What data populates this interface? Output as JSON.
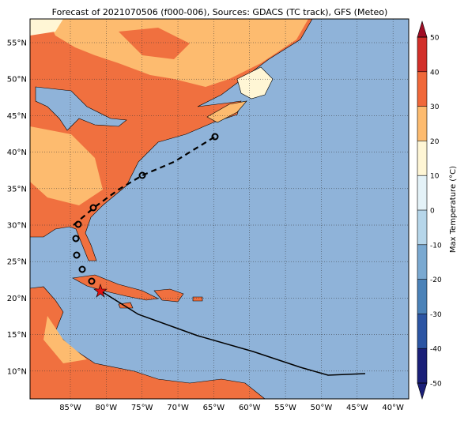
{
  "title": "Forecast of 2021070506 (f000-006), Sources: GDACS (TC track), GFS (Meteo)",
  "lat_ticks": [
    {
      "value": 55,
      "label": "55°N"
    },
    {
      "value": 50,
      "label": "50°N"
    },
    {
      "value": 45,
      "label": "45°N"
    },
    {
      "value": 40,
      "label": "40°N"
    },
    {
      "value": 35,
      "label": "35°N"
    },
    {
      "value": 30,
      "label": "30°N"
    },
    {
      "value": 25,
      "label": "25°N"
    },
    {
      "value": 20,
      "label": "20°N"
    },
    {
      "value": 15,
      "label": "15°N"
    },
    {
      "value": 10,
      "label": "10°N"
    }
  ],
  "lon_ticks": [
    {
      "value": -85,
      "label": "85°W"
    },
    {
      "value": -80,
      "label": "80°W"
    },
    {
      "value": -75,
      "label": "75°W"
    },
    {
      "value": -70,
      "label": "70°W"
    },
    {
      "value": -65,
      "label": "65°W"
    },
    {
      "value": -60,
      "label": "60°W"
    },
    {
      "value": -55,
      "label": "55°W"
    },
    {
      "value": -50,
      "label": "50°W"
    },
    {
      "value": -45,
      "label": "45°W"
    },
    {
      "value": -40,
      "label": "40°W"
    }
  ],
  "colorbar": {
    "label": "Max Temperature (°C)",
    "ticks": [
      -50,
      -40,
      -30,
      -20,
      -10,
      0,
      10,
      20,
      30,
      40,
      50
    ],
    "colors": [
      "#1a1f78",
      "#2c55a3",
      "#4b82b8",
      "#7aa9d1",
      "#b6d6ea",
      "#e4f2f8",
      "#fff6d5",
      "#fdbb6f",
      "#f0683a",
      "#d2302a",
      "#a00d25"
    ]
  }
}
